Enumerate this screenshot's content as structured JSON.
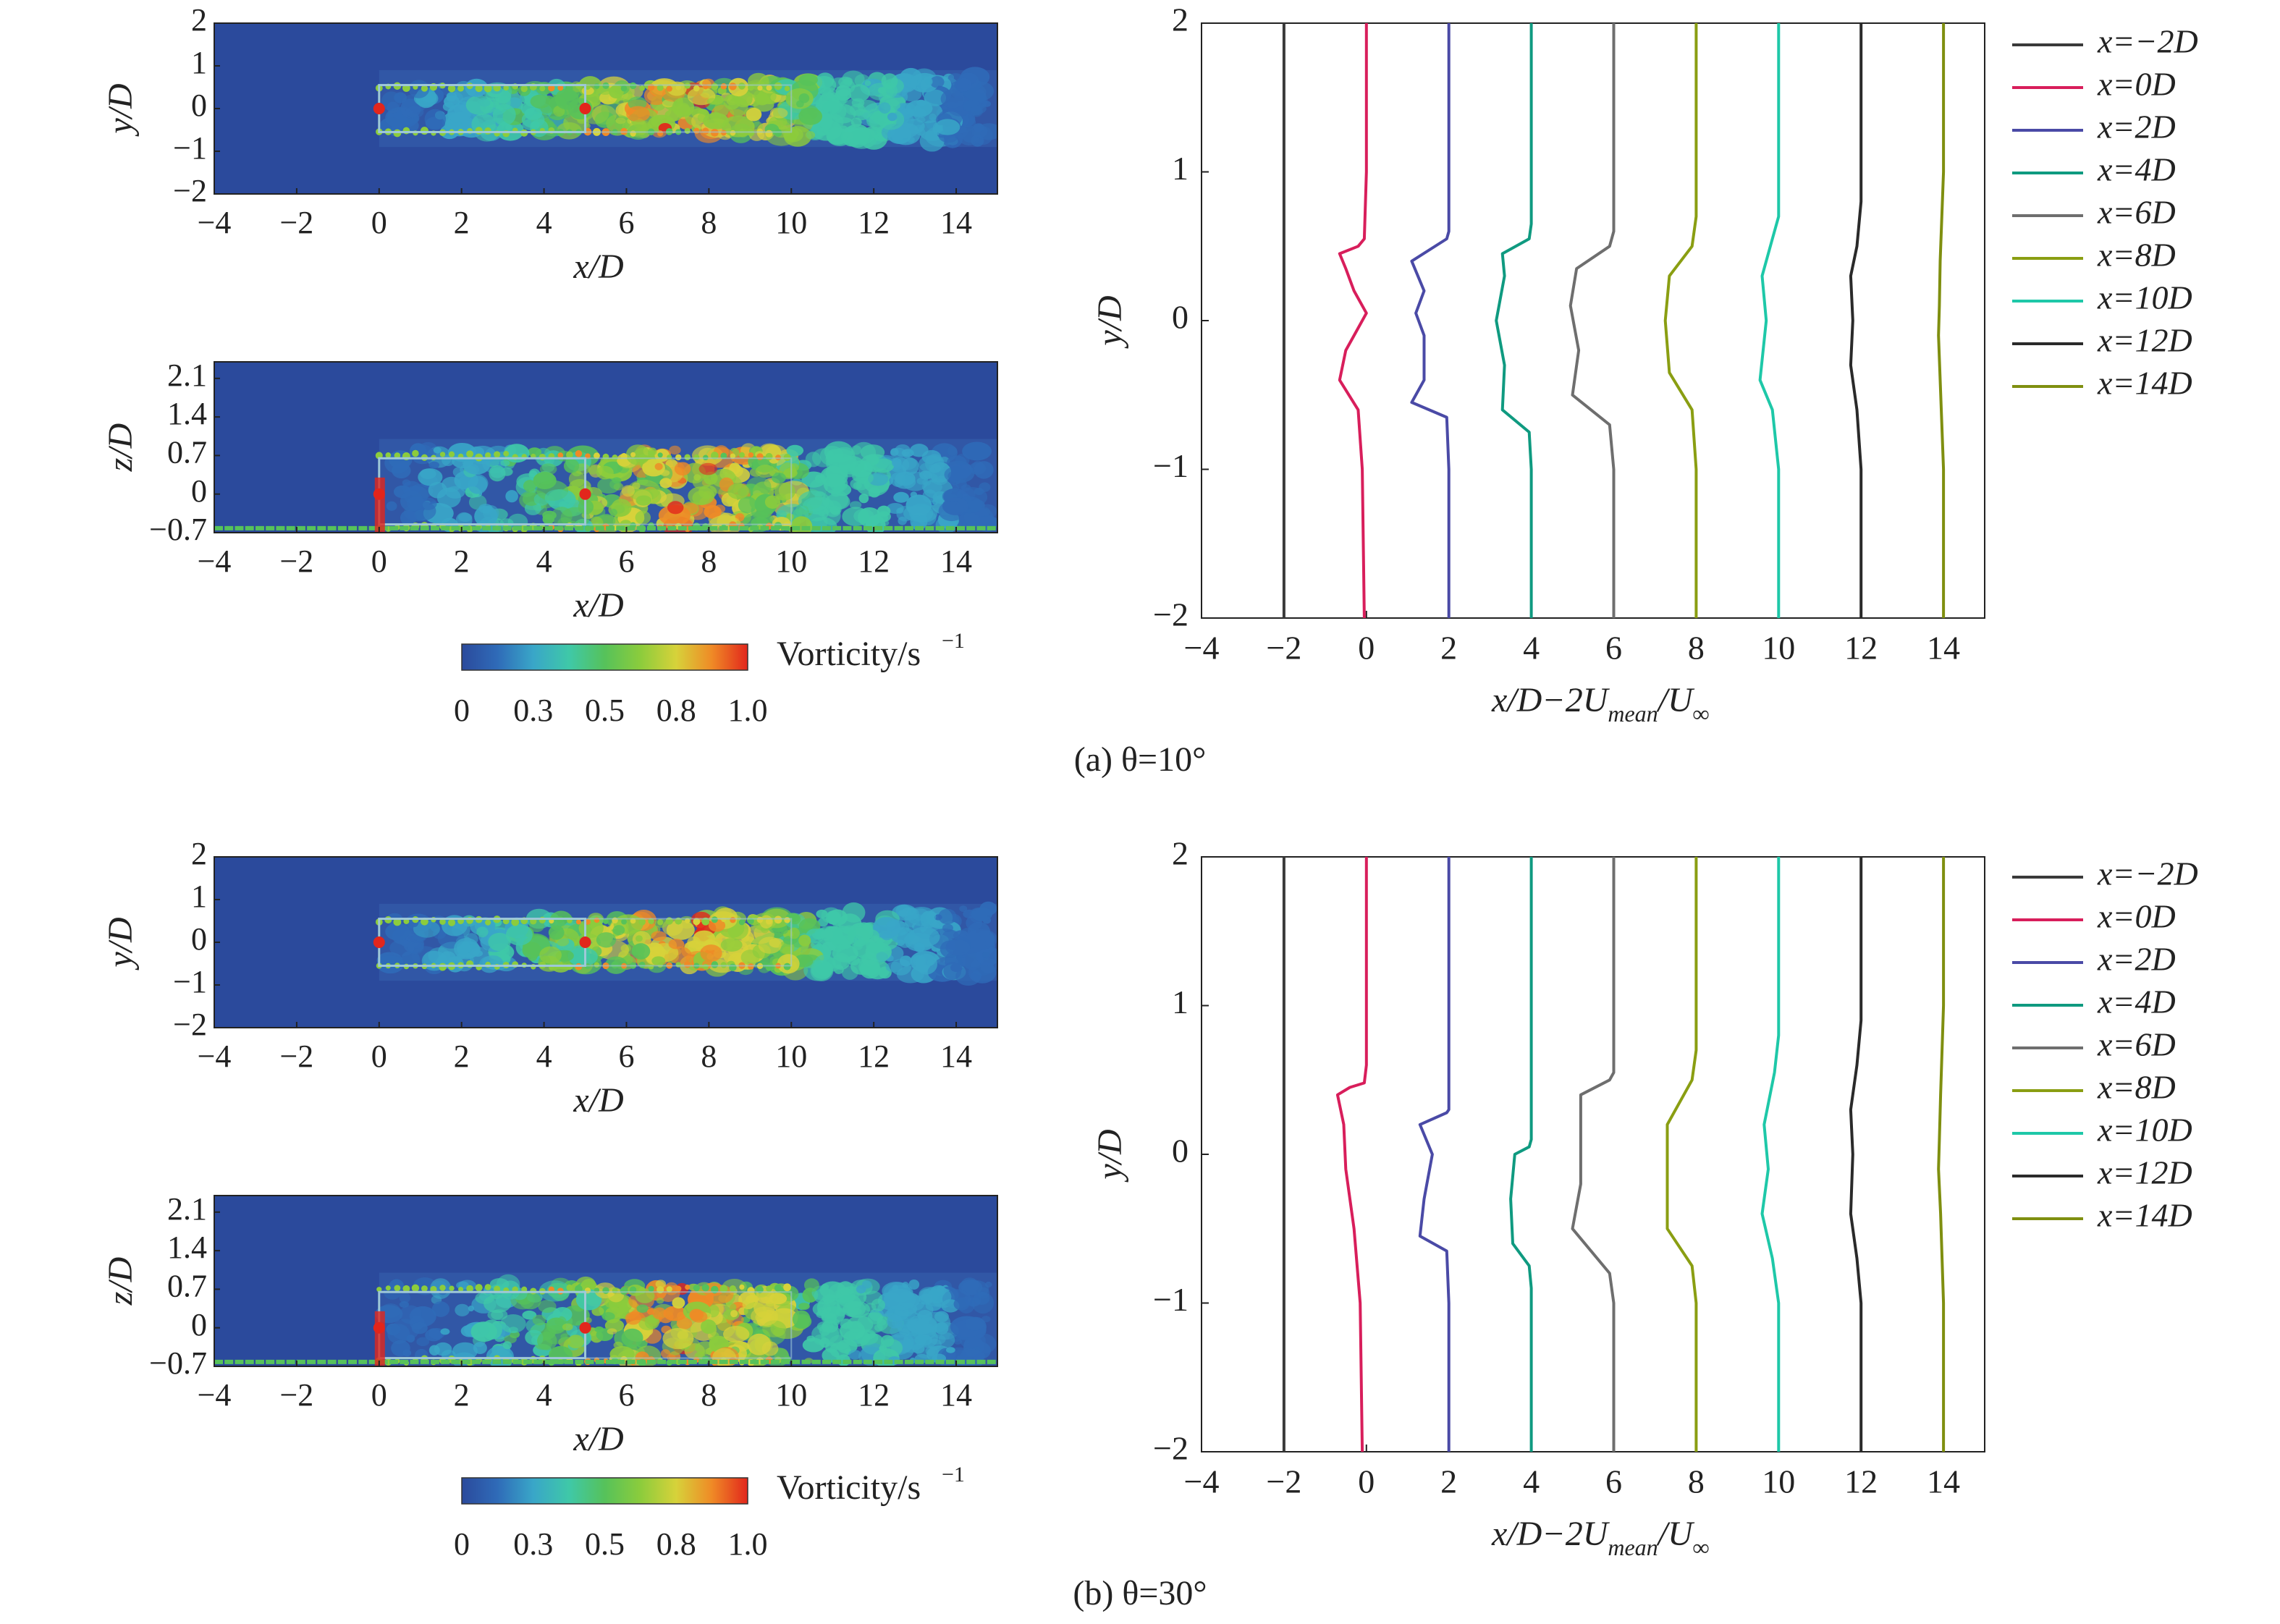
{
  "figure": {
    "vorticity_label": "Vorticity/s",
    "vorticity_exp": "−1",
    "colorbar_ticks": [
      "0",
      "0.3",
      "0.5",
      "0.8",
      "1.0"
    ],
    "colormap": [
      "#2b4a9c",
      "#2f6bb8",
      "#39a6c8",
      "#3fc8a8",
      "#56c25a",
      "#8ccc3c",
      "#d7d23a",
      "#ef8a26",
      "#e2261c"
    ]
  },
  "chart_data": [
    {
      "panel": "a",
      "caption": "(a) θ=10°",
      "title": "",
      "type": "heatmap",
      "xlabel": "x/D",
      "ylabel": "y/D",
      "xlim": [
        -4,
        15
      ],
      "ylim": [
        -2,
        2
      ],
      "xticks": [
        "−4",
        "−2",
        "0",
        "2",
        "4",
        "6",
        "8",
        "10",
        "12",
        "14"
      ],
      "yticks": [
        "2",
        "1",
        "0",
        "−1",
        "−2"
      ]
    },
    {
      "panel": "a",
      "title": "",
      "type": "heatmap",
      "xlabel": "x/D",
      "ylabel": "z/D",
      "xlim": [
        -4,
        15
      ],
      "ylim": [
        -0.7,
        2.4
      ],
      "xticks": [
        "−4",
        "−2",
        "0",
        "2",
        "4",
        "6",
        "8",
        "10",
        "12",
        "14"
      ],
      "yticks": [
        "2.1",
        "1.4",
        "0.7",
        "0",
        "−0.7"
      ]
    },
    {
      "panel": "a",
      "title": "",
      "type": "line",
      "xlabel_pre": "x/D−2U",
      "xlabel_sub1": "mean",
      "xlabel_mid": "/U",
      "xlabel_sub2": "∞",
      "ylabel": "y/D",
      "xlim": [
        -4,
        15
      ],
      "ylim": [
        -2,
        2
      ],
      "xticks": [
        "−4",
        "−2",
        "0",
        "2",
        "4",
        "6",
        "8",
        "10",
        "12",
        "14"
      ],
      "yticks": [
        "2",
        "1",
        "0",
        "−1",
        "−2"
      ],
      "series": [
        {
          "name": "x=−2D",
          "color": "#3a3a3a",
          "x": [
            -2,
            -2,
            -2,
            -2,
            -2
          ],
          "y": [
            -2,
            -1,
            0,
            1,
            2
          ]
        },
        {
          "name": "x=0D",
          "color": "#d81e5b",
          "x": [
            -0.05,
            -0.1,
            -0.2,
            -0.65,
            -0.5,
            -0.3,
            0,
            -0.3,
            -0.5,
            -0.65,
            -0.2,
            -0.05,
            0,
            0
          ],
          "y": [
            -2,
            -1,
            -0.6,
            -0.4,
            -0.2,
            -0.1,
            0.05,
            0.2,
            0.35,
            0.45,
            0.5,
            0.55,
            1,
            2
          ]
        },
        {
          "name": "x=2D",
          "color": "#4a4aa6",
          "x": [
            2,
            2,
            1.95,
            1.1,
            1.4,
            1.4,
            1.2,
            1.4,
            1.1,
            1.95,
            2,
            2
          ],
          "y": [
            -2,
            -1,
            -0.65,
            -0.55,
            -0.4,
            -0.1,
            0.05,
            0.2,
            0.4,
            0.55,
            0.6,
            2
          ]
        },
        {
          "name": "x=4D",
          "color": "#0f9a80",
          "x": [
            4,
            4,
            3.95,
            3.3,
            3.35,
            3.15,
            3.35,
            3.3,
            3.95,
            4,
            4
          ],
          "y": [
            -2,
            -1,
            -0.75,
            -0.6,
            -0.3,
            0,
            0.3,
            0.45,
            0.55,
            0.65,
            2
          ]
        },
        {
          "name": "x=6D",
          "color": "#6e6e6e",
          "x": [
            6,
            6,
            5.9,
            5,
            5.15,
            4.95,
            5.1,
            5.9,
            6,
            6
          ],
          "y": [
            -2,
            -1,
            -0.7,
            -0.5,
            -0.2,
            0.1,
            0.35,
            0.5,
            0.6,
            2
          ]
        },
        {
          "name": "x=8D",
          "color": "#8a9e12",
          "x": [
            8,
            8,
            7.9,
            7.35,
            7.25,
            7.35,
            7.9,
            8,
            8
          ],
          "y": [
            -2,
            -1,
            -0.6,
            -0.35,
            0,
            0.3,
            0.5,
            0.7,
            2
          ]
        },
        {
          "name": "x=10D",
          "color": "#1ec8a8",
          "x": [
            10,
            10,
            9.85,
            9.55,
            9.7,
            9.6,
            9.85,
            10,
            10
          ],
          "y": [
            -2,
            -1,
            -0.6,
            -0.4,
            0,
            0.3,
            0.55,
            0.7,
            2
          ]
        },
        {
          "name": "x=12D",
          "color": "#2a2a2a",
          "x": [
            12,
            12,
            11.9,
            11.75,
            11.8,
            11.75,
            11.9,
            12,
            12
          ],
          "y": [
            -2,
            -1,
            -0.6,
            -0.3,
            0,
            0.3,
            0.5,
            0.8,
            2
          ]
        },
        {
          "name": "x=14D",
          "color": "#7f8f10",
          "x": [
            14,
            14,
            13.92,
            13.88,
            13.9,
            13.92,
            14,
            14
          ],
          "y": [
            -2,
            -1,
            -0.4,
            -0.1,
            0.1,
            0.4,
            1,
            2
          ]
        }
      ]
    },
    {
      "panel": "b",
      "caption": "(b) θ=30°",
      "title": "",
      "type": "heatmap",
      "xlabel": "x/D",
      "ylabel": "y/D",
      "xlim": [
        -4,
        15
      ],
      "ylim": [
        -2,
        2
      ],
      "xticks": [
        "−4",
        "−2",
        "0",
        "2",
        "4",
        "6",
        "8",
        "10",
        "12",
        "14"
      ],
      "yticks": [
        "2",
        "1",
        "0",
        "−1",
        "−2"
      ]
    },
    {
      "panel": "b",
      "title": "",
      "type": "heatmap",
      "xlabel": "x/D",
      "ylabel": "z/D",
      "xlim": [
        -4,
        15
      ],
      "ylim": [
        -0.7,
        2.4
      ],
      "xticks": [
        "−4",
        "−2",
        "0",
        "2",
        "4",
        "6",
        "8",
        "10",
        "12",
        "14"
      ],
      "yticks": [
        "2.1",
        "1.4",
        "0.7",
        "0",
        "−0.7"
      ]
    },
    {
      "panel": "b",
      "title": "",
      "type": "line",
      "xlabel_pre": "x/D−2U",
      "xlabel_sub1": "mean",
      "xlabel_mid": "/U",
      "xlabel_sub2": "∞",
      "ylabel": "y/D",
      "xlim": [
        -4,
        15
      ],
      "ylim": [
        -2,
        2
      ],
      "xticks": [
        "−4",
        "−2",
        "0",
        "2",
        "4",
        "6",
        "8",
        "10",
        "12",
        "14"
      ],
      "yticks": [
        "2",
        "1",
        "0",
        "−1",
        "−2"
      ],
      "series": [
        {
          "name": "x=−2D",
          "color": "#3a3a3a",
          "x": [
            -2,
            -2,
            -2,
            -2,
            -2
          ],
          "y": [
            -2,
            -1,
            0,
            1,
            2
          ]
        },
        {
          "name": "x=0D",
          "color": "#d81e5b",
          "x": [
            -0.1,
            -0.15,
            -0.3,
            -0.5,
            -0.55,
            -0.7,
            -0.4,
            -0.05,
            0,
            0
          ],
          "y": [
            -2,
            -1,
            -0.5,
            -0.1,
            0.2,
            0.4,
            0.45,
            0.48,
            0.6,
            2
          ]
        },
        {
          "name": "x=2D",
          "color": "#4a4aa6",
          "x": [
            2,
            2,
            1.95,
            1.3,
            1.4,
            1.6,
            1.3,
            1.95,
            2,
            2
          ],
          "y": [
            -2,
            -1,
            -0.65,
            -0.55,
            -0.3,
            0,
            0.2,
            0.28,
            0.3,
            2
          ]
        },
        {
          "name": "x=4D",
          "color": "#0f9a80",
          "x": [
            4,
            4,
            3.95,
            3.55,
            3.5,
            3.6,
            3.95,
            4,
            4
          ],
          "y": [
            -2,
            -0.9,
            -0.75,
            -0.6,
            -0.3,
            0,
            0.05,
            0.1,
            2
          ]
        },
        {
          "name": "x=6D",
          "color": "#6e6e6e",
          "x": [
            6,
            6,
            5.9,
            5,
            5.2,
            5.2,
            5.9,
            6,
            6
          ],
          "y": [
            -2,
            -1,
            -0.8,
            -0.5,
            -0.2,
            0.4,
            0.5,
            0.55,
            2
          ]
        },
        {
          "name": "x=8D",
          "color": "#8a9e12",
          "x": [
            8,
            8,
            7.9,
            7.3,
            7.3,
            7.3,
            7.9,
            8,
            8
          ],
          "y": [
            -2,
            -1,
            -0.75,
            -0.5,
            -0.2,
            0.2,
            0.5,
            0.7,
            2
          ]
        },
        {
          "name": "x=10D",
          "color": "#1ec8a8",
          "x": [
            10,
            10,
            9.85,
            9.6,
            9.75,
            9.65,
            9.9,
            10,
            10
          ],
          "y": [
            -2,
            -1,
            -0.7,
            -0.4,
            -0.1,
            0.2,
            0.55,
            0.8,
            2
          ]
        },
        {
          "name": "x=12D",
          "color": "#2a2a2a",
          "x": [
            12,
            12,
            11.9,
            11.75,
            11.8,
            11.75,
            11.9,
            12,
            12
          ],
          "y": [
            -2,
            -1,
            -0.7,
            -0.4,
            0,
            0.3,
            0.6,
            0.9,
            2
          ]
        },
        {
          "name": "x=14D",
          "color": "#7f8f10",
          "x": [
            14,
            14,
            13.93,
            13.88,
            13.9,
            13.93,
            14,
            14
          ],
          "y": [
            -2,
            -1,
            -0.4,
            -0.1,
            0.1,
            0.4,
            1,
            2
          ]
        }
      ]
    }
  ]
}
